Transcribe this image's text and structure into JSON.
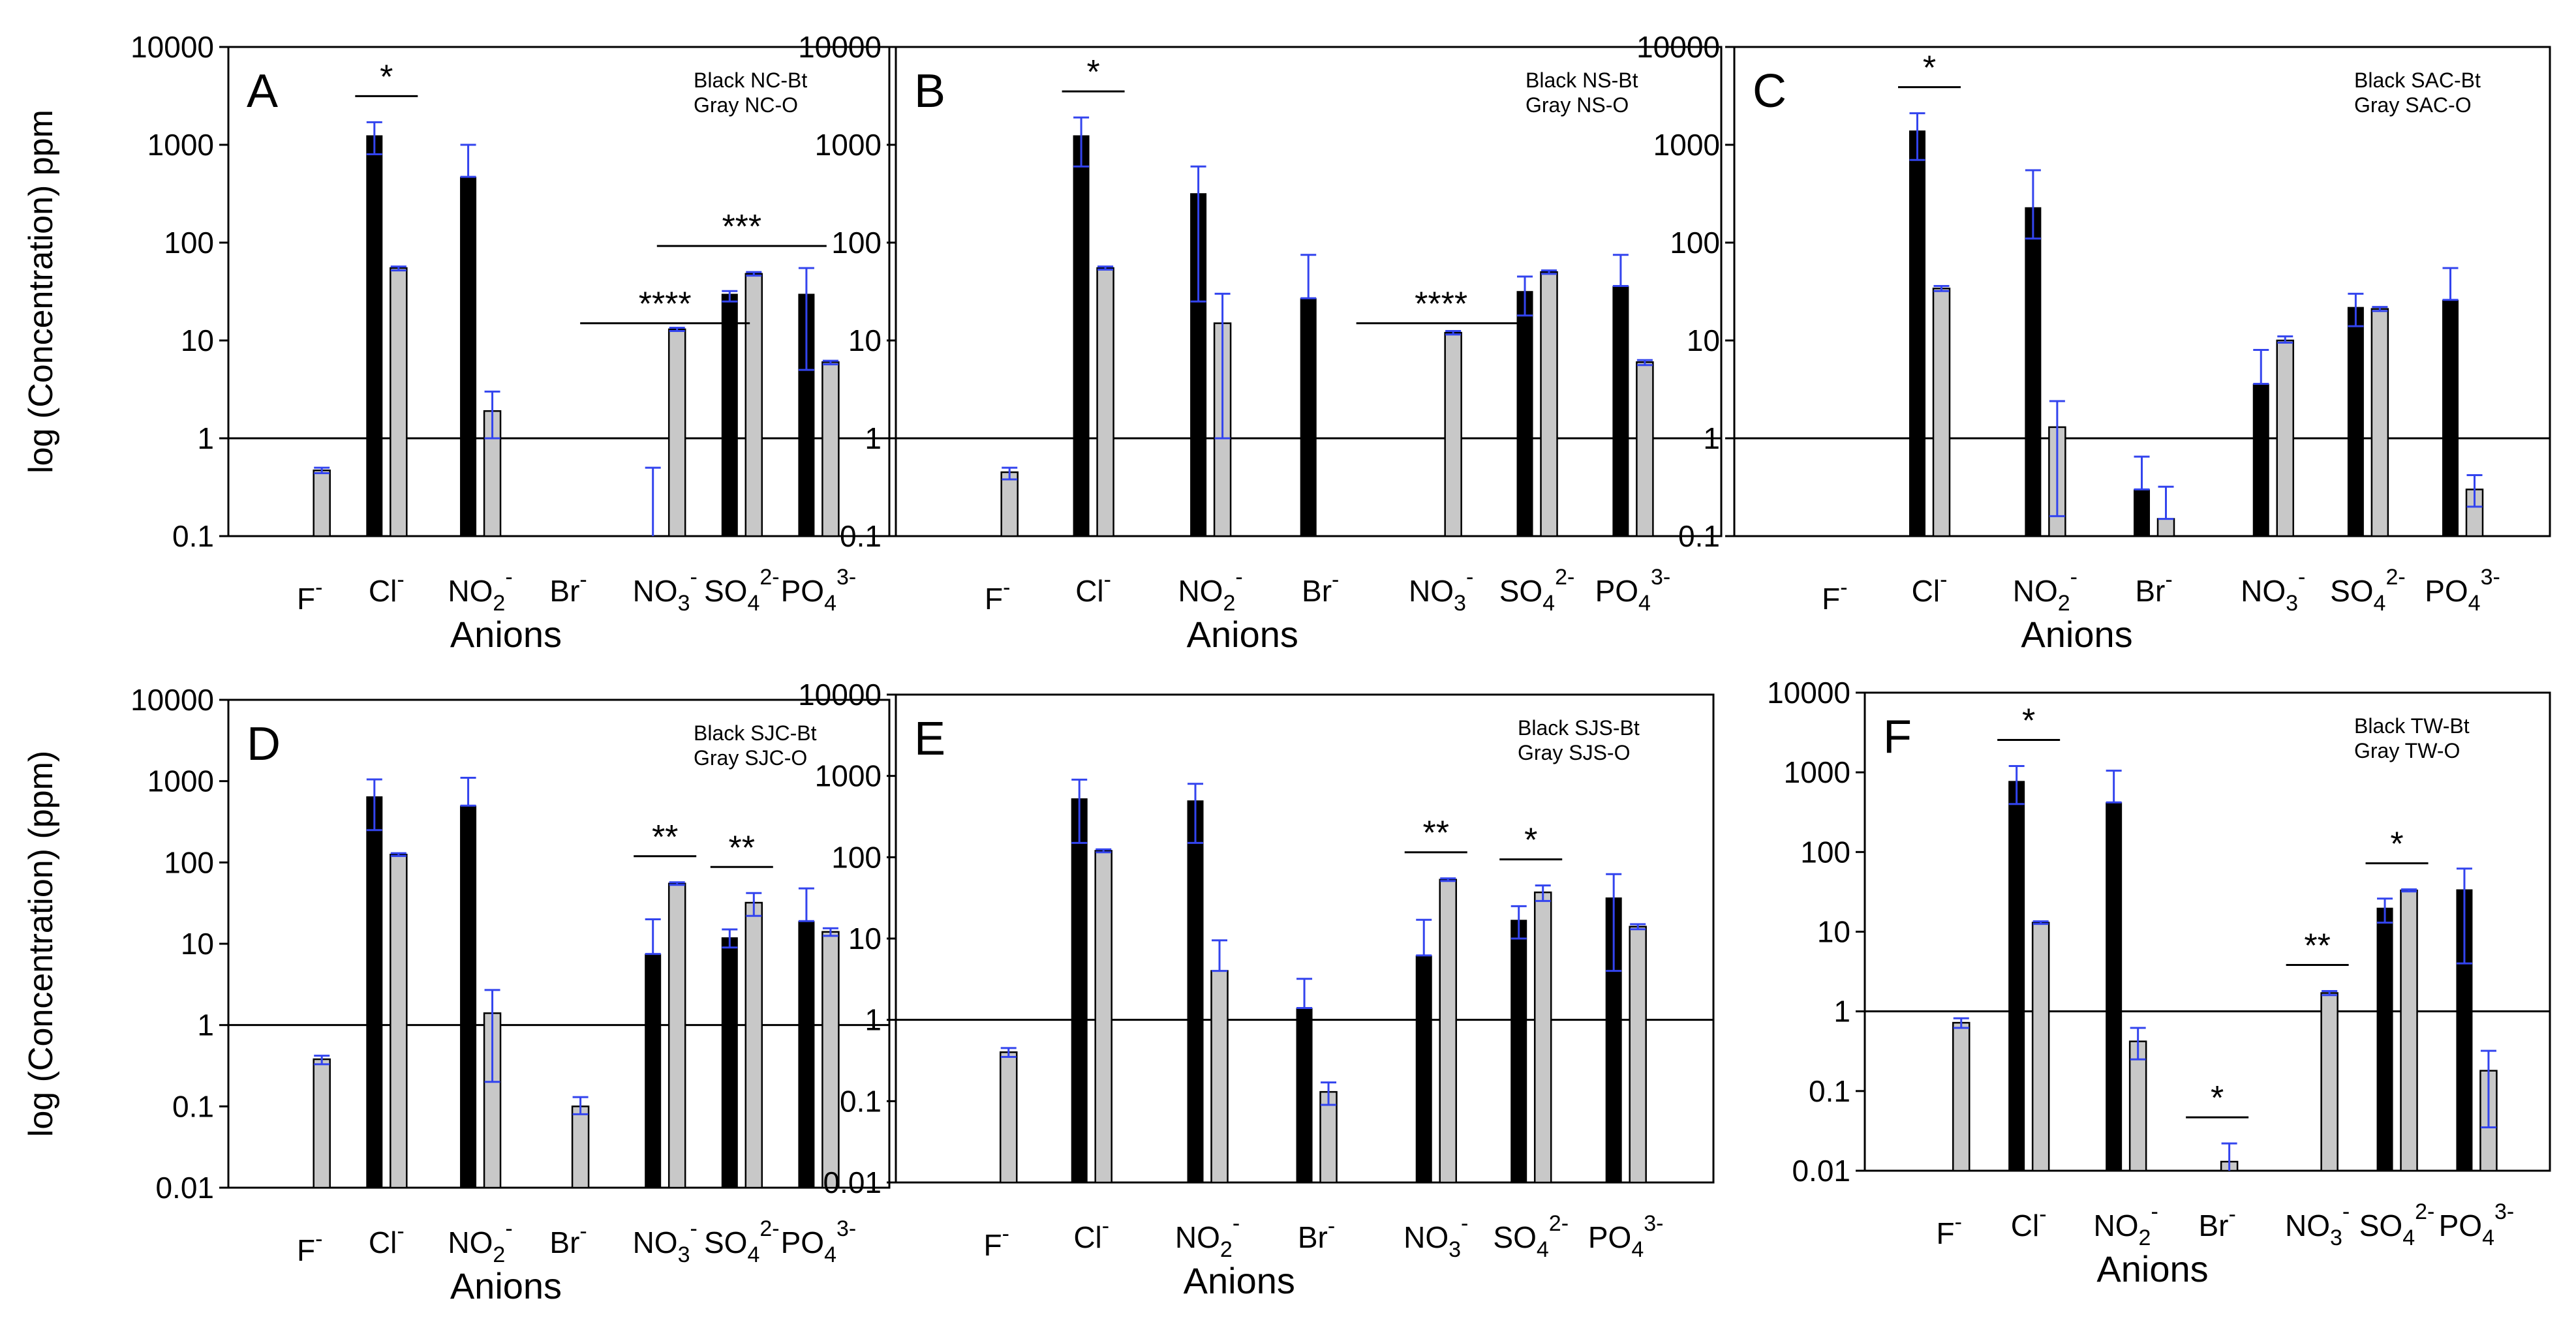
{
  "chart_data": [
    {
      "type": "bar",
      "panel": "A",
      "ylabel": "log (Concentration) ppm",
      "xlabel": "Anions",
      "legend": [
        "Black NC-Bt",
        "Gray NC-O"
      ],
      "ylim": [
        0.1,
        10000
      ],
      "yscale": "log",
      "yticks": [
        "0.1",
        "1",
        "10",
        "100",
        "1000",
        "10000"
      ],
      "categories": [
        [
          "F",
          "-"
        ],
        [
          "Cl",
          "-"
        ],
        [
          "NO",
          "2",
          "-"
        ],
        [
          "Br",
          "-"
        ],
        [
          "NO",
          "3",
          "-"
        ],
        [
          "SO",
          "4",
          "2-"
        ],
        [
          "PO",
          "4",
          "3-"
        ]
      ],
      "series": [
        {
          "name": "Black NC-Bt",
          "values": [
            null,
            1250,
            470,
            null,
            0.08,
            30,
            30
          ],
          "err_hi": [
            null,
            1700,
            1000,
            null,
            0.5,
            32,
            55
          ],
          "err_lo": [
            null,
            800,
            470,
            null,
            0.08,
            25,
            5
          ]
        },
        {
          "name": "Gray NC-O",
          "values": [
            0.47,
            55,
            1.9,
            null,
            13,
            48,
            6
          ],
          "err_hi": [
            0.5,
            57,
            3,
            null,
            13.5,
            50,
            6.2
          ],
          "err_lo": [
            0.44,
            52,
            1,
            null,
            12.5,
            46,
            5.7
          ]
        }
      ],
      "significance": [
        {
          "cat": 1,
          "label": "*"
        },
        {
          "cat": [
            4,
            4
          ],
          "label": "****"
        },
        {
          "cat": [
            5,
            5
          ],
          "label": "***"
        }
      ]
    },
    {
      "type": "bar",
      "panel": "B",
      "ylabel": "",
      "xlabel": "Anions",
      "legend": [
        "Black NS-Bt",
        "Gray NS-O"
      ],
      "ylim": [
        0.1,
        10000
      ],
      "yscale": "log",
      "yticks": [
        "0.1",
        "1",
        "10",
        "100",
        "1000",
        "10000"
      ],
      "categories": [
        [
          "F",
          "-"
        ],
        [
          "Cl",
          "-"
        ],
        [
          "NO",
          "2",
          "-"
        ],
        [
          "Br",
          "-"
        ],
        [
          "NO",
          "3",
          "-"
        ],
        [
          "SO",
          "4",
          "2-"
        ],
        [
          "PO",
          "4",
          "3-"
        ]
      ],
      "series": [
        {
          "name": "Black NS-Bt",
          "values": [
            null,
            1250,
            320,
            27,
            null,
            32,
            36
          ],
          "err_hi": [
            null,
            1900,
            600,
            75,
            null,
            45,
            75
          ],
          "err_lo": [
            null,
            600,
            25,
            27,
            null,
            18,
            36
          ]
        },
        {
          "name": "Gray NS-O",
          "values": [
            0.45,
            55,
            15,
            null,
            12,
            50,
            6
          ],
          "err_hi": [
            0.5,
            57,
            30,
            null,
            12.5,
            52,
            6.3
          ],
          "err_lo": [
            0.38,
            53,
            1,
            null,
            11.5,
            48,
            5.6
          ]
        }
      ],
      "significance": [
        {
          "cat": 1,
          "label": "*"
        },
        {
          "cat": [
            4,
            4
          ],
          "label": "****"
        }
      ]
    },
    {
      "type": "bar",
      "panel": "C",
      "ylabel": "",
      "xlabel": "Anions",
      "legend": [
        "Black SAC-Bt",
        "Gray SAC-O"
      ],
      "ylim": [
        0.1,
        10000
      ],
      "yscale": "log",
      "yticks": [
        "0.1",
        "1",
        "10",
        "100",
        "1000",
        "10000"
      ],
      "categories": [
        [
          "F",
          "-"
        ],
        [
          "Cl",
          "-"
        ],
        [
          "NO",
          "2",
          "-"
        ],
        [
          "Br",
          "-"
        ],
        [
          "NO",
          "3",
          "-"
        ],
        [
          "SO",
          "4",
          "2-"
        ],
        [
          "PO",
          "4",
          "3-"
        ]
      ],
      "series": [
        {
          "name": "Black SAC-Bt",
          "values": [
            null,
            1400,
            230,
            0.3,
            3.6,
            22,
            26
          ],
          "err_hi": [
            null,
            2100,
            550,
            0.65,
            8,
            30,
            55
          ],
          "err_lo": [
            null,
            700,
            110,
            0.3,
            3.6,
            14,
            26
          ]
        },
        {
          "name": "Gray SAC-O",
          "values": [
            null,
            34,
            1.3,
            0.15,
            10,
            21,
            0.3
          ],
          "err_hi": [
            null,
            36,
            2.4,
            0.32,
            11,
            22,
            0.42
          ],
          "err_lo": [
            null,
            32,
            0.16,
            0.15,
            9.5,
            20,
            0.2
          ]
        }
      ],
      "significance": [
        {
          "cat": 1,
          "label": "*"
        }
      ]
    },
    {
      "type": "bar",
      "panel": "D",
      "ylabel": "log (Concentration) (ppm)",
      "xlabel": "Anions",
      "legend": [
        "Black SJC-Bt",
        "Gray SJC-O"
      ],
      "ylim": [
        0.01,
        10000
      ],
      "yscale": "log",
      "yticks": [
        "0.01",
        "0.1",
        "1",
        "10",
        "100",
        "1000",
        "10000"
      ],
      "categories": [
        [
          "F",
          "-"
        ],
        [
          "Cl",
          "-"
        ],
        [
          "NO",
          "2",
          "-"
        ],
        [
          "Br",
          "-"
        ],
        [
          "NO",
          "3",
          "-"
        ],
        [
          "SO",
          "4",
          "2-"
        ],
        [
          "PO",
          "4",
          "3-"
        ]
      ],
      "series": [
        {
          "name": "Black SJC-Bt",
          "values": [
            null,
            650,
            500,
            null,
            7.5,
            12,
            19
          ],
          "err_hi": [
            null,
            1050,
            1100,
            null,
            20,
            15,
            48
          ],
          "err_lo": [
            null,
            250,
            500,
            null,
            7.5,
            9,
            19
          ]
        },
        {
          "name": "Gray SJC-O",
          "values": [
            0.38,
            125,
            1.4,
            0.1,
            55,
            32,
            14
          ],
          "err_hi": [
            0.42,
            130,
            2.7,
            0.13,
            57,
            42,
            15.5
          ],
          "err_lo": [
            0.33,
            120,
            0.2,
            0.08,
            53,
            22,
            12.5
          ]
        }
      ],
      "significance": [
        {
          "cat": 4,
          "label": "**"
        },
        {
          "cat": 5,
          "label": "**"
        }
      ]
    },
    {
      "type": "bar",
      "panel": "E",
      "ylabel": "",
      "xlabel": "Anions",
      "legend": [
        "Black SJS-Bt",
        "Gray SJS-O"
      ],
      "ylim": [
        0.01,
        10000
      ],
      "yscale": "log",
      "yticks": [
        "0.01",
        "0.1",
        "1",
        "10",
        "100",
        "1000",
        "10000"
      ],
      "categories": [
        [
          "F",
          "-"
        ],
        [
          "Cl",
          "-"
        ],
        [
          "NO",
          "2",
          "-"
        ],
        [
          "Br",
          "-"
        ],
        [
          "NO",
          "3",
          "-"
        ],
        [
          "SO",
          "4",
          "2-"
        ],
        [
          "PO",
          "4",
          "3-"
        ]
      ],
      "series": [
        {
          "name": "Black SJS-Bt",
          "values": [
            null,
            530,
            500,
            1.4,
            6.2,
            17,
            32
          ],
          "err_hi": [
            null,
            900,
            800,
            3.2,
            17,
            25,
            62
          ],
          "err_lo": [
            null,
            150,
            150,
            1.4,
            6.2,
            10,
            4
          ]
        },
        {
          "name": "Gray SJS-O",
          "values": [
            0.4,
            120,
            4,
            0.13,
            53,
            37,
            14
          ],
          "err_hi": [
            0.45,
            125,
            9.5,
            0.17,
            55,
            45,
            15
          ],
          "err_lo": [
            0.35,
            115,
            4,
            0.09,
            51,
            29,
            13
          ]
        }
      ],
      "significance": [
        {
          "cat": 4,
          "label": "**"
        },
        {
          "cat": 5,
          "label": "*"
        }
      ]
    },
    {
      "type": "bar",
      "panel": "F",
      "ylabel": "",
      "xlabel": "Anions",
      "legend": [
        "Black TW-Bt",
        "Gray TW-O"
      ],
      "ylim": [
        0.01,
        10000
      ],
      "yscale": "log",
      "yticks": [
        "0.01",
        "0.1",
        "1",
        "10",
        "100",
        "1000",
        "10000"
      ],
      "categories": [
        [
          "F",
          "-"
        ],
        [
          "Cl",
          "-"
        ],
        [
          "NO",
          "2",
          "-"
        ],
        [
          "Br",
          "-"
        ],
        [
          "NO",
          "3",
          "-"
        ],
        [
          "SO",
          "4",
          "2-"
        ],
        [
          "PO",
          "4",
          "3-"
        ]
      ],
      "series": [
        {
          "name": "Black TW-Bt",
          "values": [
            null,
            780,
            420,
            null,
            null,
            20,
            34
          ],
          "err_hi": [
            null,
            1200,
            1050,
            null,
            null,
            26,
            62
          ],
          "err_lo": [
            null,
            400,
            420,
            null,
            null,
            13,
            4
          ]
        },
        {
          "name": "Gray TW-O",
          "values": [
            0.72,
            13,
            0.42,
            0.013,
            1.7,
            33,
            0.18
          ],
          "err_hi": [
            0.82,
            13.5,
            0.62,
            0.022,
            1.8,
            34,
            0.32
          ],
          "err_lo": [
            0.62,
            12.5,
            0.25,
            0.01,
            1.6,
            32,
            0.035
          ]
        }
      ],
      "significance": [
        {
          "cat": 1,
          "label": "*"
        },
        {
          "cat": [
            4,
            4
          ],
          "label": "**"
        },
        {
          "cat": 3,
          "label": "*"
        },
        {
          "cat": 5,
          "label": "*"
        }
      ]
    }
  ]
}
